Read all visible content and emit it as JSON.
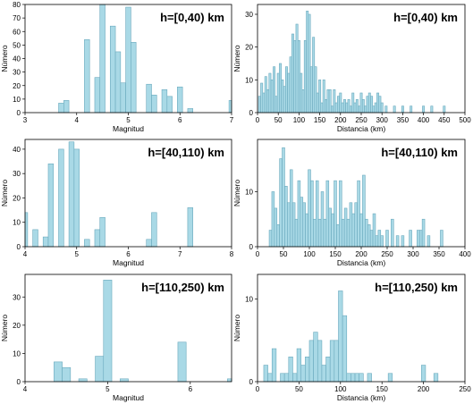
{
  "chart_data": [
    {
      "type": "bar",
      "title": "h=[0,40) km",
      "xlabel": "Magnitud",
      "ylabel": "Número",
      "xlim": [
        3,
        7
      ],
      "ylim": [
        0,
        80
      ],
      "bin_width": 0.1,
      "xticks": [
        3,
        4,
        5,
        6,
        7
      ],
      "yticks": [
        0,
        10,
        20,
        30,
        40,
        50,
        60,
        70,
        80
      ],
      "x": [
        3.7,
        3.8,
        4.2,
        4.4,
        4.5,
        4.7,
        4.8,
        4.9,
        5.0,
        5.1,
        5.4,
        5.5,
        5.7,
        5.8,
        6.0,
        6.2,
        7.0
      ],
      "values": [
        7,
        9,
        54,
        26,
        80,
        64,
        45,
        22,
        78,
        52,
        21,
        13,
        17,
        12,
        19,
        3,
        9
      ]
    },
    {
      "type": "bar",
      "title": "h=[0,40) km",
      "xlabel": "Distancia (km)",
      "ylabel": "Número",
      "xlim": [
        0,
        500
      ],
      "ylim": [
        0,
        33
      ],
      "bin_width": 5,
      "xticks": [
        0,
        50,
        100,
        150,
        200,
        250,
        300,
        350,
        400,
        450,
        500
      ],
      "yticks": [
        0,
        10,
        20,
        30
      ],
      "x": [
        5,
        10,
        15,
        20,
        25,
        30,
        35,
        40,
        45,
        50,
        55,
        60,
        65,
        70,
        75,
        80,
        85,
        90,
        95,
        100,
        105,
        110,
        115,
        120,
        125,
        130,
        135,
        140,
        145,
        150,
        155,
        160,
        165,
        170,
        175,
        180,
        185,
        190,
        195,
        200,
        205,
        210,
        215,
        220,
        225,
        230,
        235,
        240,
        245,
        250,
        255,
        260,
        265,
        270,
        275,
        280,
        285,
        290,
        295,
        300,
        310,
        330,
        350,
        370,
        400,
        420,
        450
      ],
      "values": [
        5,
        9,
        6,
        11,
        7,
        12,
        10,
        14,
        5,
        12,
        15,
        10,
        8,
        14,
        12,
        17,
        24,
        22,
        27,
        22,
        12,
        7,
        22,
        31,
        30,
        14,
        23,
        14,
        6,
        10,
        3,
        10,
        4,
        7,
        7,
        2,
        7,
        3,
        5,
        6,
        3,
        4,
        3,
        4,
        2,
        6,
        3,
        4,
        2,
        6,
        4,
        2,
        5,
        6,
        5,
        2,
        3,
        6,
        5,
        3,
        2,
        2,
        2,
        2,
        2,
        2,
        2
      ]
    },
    {
      "type": "bar",
      "title": "h=[40,110) km",
      "xlabel": "Magnitud",
      "ylabel": "Número",
      "xlim": [
        4,
        8
      ],
      "ylim": [
        0,
        44
      ],
      "bin_width": 0.1,
      "xticks": [
        4,
        5,
        6,
        7,
        8
      ],
      "yticks": [
        0,
        10,
        20,
        30,
        40
      ],
      "x": [
        4.0,
        4.2,
        4.4,
        4.5,
        4.7,
        4.9,
        5.0,
        5.2,
        5.4,
        5.5,
        6.4,
        6.5,
        7.2
      ],
      "values": [
        14,
        7,
        4,
        34,
        40,
        43,
        40,
        3,
        7,
        12,
        3,
        14,
        16
      ]
    },
    {
      "type": "bar",
      "title": "h=[40,110) km",
      "xlabel": "Distancia (km)",
      "ylabel": "Número",
      "xlim": [
        0,
        400
      ],
      "ylim": [
        0,
        19.5
      ],
      "bin_width": 5,
      "xticks": [
        0,
        50,
        100,
        150,
        200,
        250,
        300,
        350,
        400
      ],
      "yticks": [
        0,
        10
      ],
      "x": [
        25,
        30,
        35,
        40,
        45,
        50,
        55,
        60,
        65,
        70,
        75,
        80,
        85,
        90,
        95,
        100,
        105,
        110,
        115,
        120,
        125,
        130,
        135,
        140,
        145,
        150,
        155,
        160,
        165,
        170,
        175,
        180,
        185,
        190,
        195,
        200,
        205,
        210,
        215,
        220,
        225,
        230,
        235,
        240,
        250,
        260,
        270,
        280,
        295,
        310,
        315,
        320,
        330,
        355
      ],
      "values": [
        3,
        10,
        7,
        4,
        16,
        18,
        11,
        8,
        14,
        8,
        5,
        12,
        9,
        8,
        6,
        14,
        12,
        5,
        12,
        5,
        10,
        5,
        12,
        7,
        6,
        12,
        4,
        12,
        5,
        7,
        5,
        8,
        6,
        8,
        12,
        6,
        13,
        5,
        4,
        3,
        6,
        2,
        3,
        2,
        3,
        5,
        2,
        2,
        3,
        3,
        3,
        5,
        2,
        3
      ]
    },
    {
      "type": "bar",
      "title": "h=[110,250) km",
      "xlabel": "Magnitud",
      "ylabel": "Número",
      "xlim": [
        4,
        6.5
      ],
      "ylim": [
        0,
        38
      ],
      "bin_width": 0.1,
      "xticks": [
        4,
        5,
        6
      ],
      "yticks": [
        0,
        10,
        20,
        30
      ],
      "x": [
        4.4,
        4.5,
        4.7,
        4.9,
        5.0,
        5.2,
        5.9,
        6.5
      ],
      "values": [
        7,
        5,
        1,
        9,
        36,
        1,
        14,
        1
      ]
    },
    {
      "type": "bar",
      "title": "h=[110,250) km",
      "xlabel": "Distancia (km)",
      "ylabel": "Número",
      "xlim": [
        0,
        250
      ],
      "ylim": [
        0,
        13
      ],
      "bin_width": 5,
      "xticks": [
        0,
        50,
        100,
        150,
        200,
        250
      ],
      "yticks": [
        0,
        10
      ],
      "x": [
        10,
        15,
        20,
        30,
        35,
        40,
        45,
        50,
        55,
        60,
        65,
        70,
        75,
        80,
        85,
        90,
        95,
        100,
        105,
        110,
        115,
        120,
        125,
        135,
        160,
        200,
        215
      ],
      "values": [
        2,
        1,
        4,
        1,
        1,
        3,
        1,
        4,
        2,
        3,
        5,
        6,
        5,
        2,
        3,
        5,
        5,
        11,
        8,
        1,
        1,
        1,
        1,
        1,
        1,
        2,
        1
      ]
    }
  ]
}
